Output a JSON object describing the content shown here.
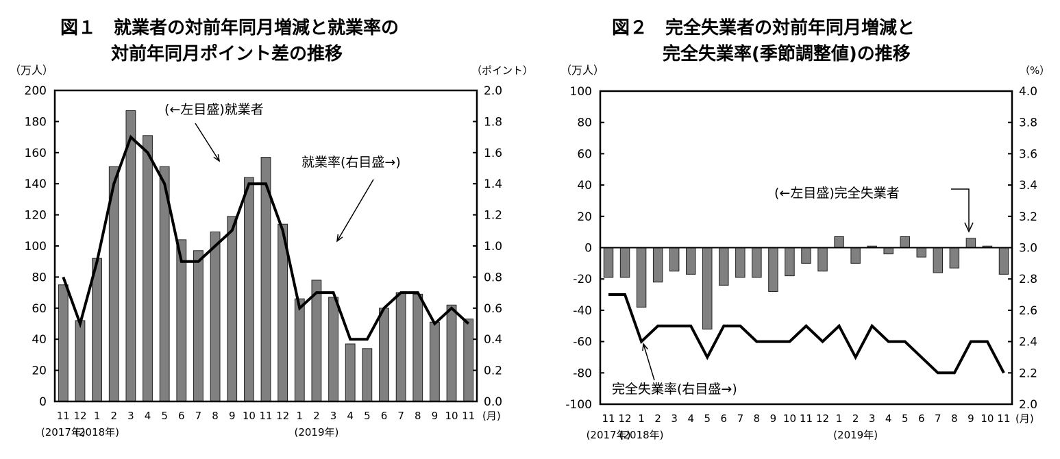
{
  "chart_data": [
    {
      "type": "bar+line",
      "title_line1": "図１　就業者の対前年同月増減と就業率の",
      "title_line2": "対前年同月ポイント差の推移",
      "ylabel_left": "（万人）",
      "ylabel_right": "（ポイント）",
      "x_unit": "(月)",
      "categories": [
        "11",
        "12",
        "1",
        "2",
        "3",
        "4",
        "5",
        "6",
        "7",
        "8",
        "9",
        "10",
        "11",
        "12",
        "1",
        "2",
        "3",
        "4",
        "5",
        "6",
        "7",
        "8",
        "9",
        "10",
        "11"
      ],
      "year_labels": [
        {
          "index": 0,
          "text": "(2017年)"
        },
        {
          "index": 2,
          "text": "(2018年)"
        },
        {
          "index": 15,
          "text": "(2019年)"
        }
      ],
      "ylim_left": [
        0,
        200
      ],
      "yticks_left": [
        0,
        20,
        40,
        60,
        80,
        100,
        120,
        140,
        160,
        180,
        200
      ],
      "ylim_right": [
        0,
        2.0
      ],
      "yticks_right": [
        "0.0",
        "0.2",
        "0.4",
        "0.6",
        "0.8",
        "1.0",
        "1.2",
        "1.4",
        "1.6",
        "1.8",
        "2.0"
      ],
      "series": [
        {
          "name": "就業者",
          "axis": "left",
          "type": "bar",
          "color": "#808080",
          "values": [
            75,
            52,
            92,
            151,
            187,
            171,
            151,
            104,
            97,
            109,
            119,
            144,
            157,
            114,
            66,
            78,
            67,
            37,
            34,
            60,
            70,
            69,
            51,
            62,
            53
          ]
        },
        {
          "name": "就業率",
          "axis": "right",
          "type": "line",
          "color": "#000000",
          "values": [
            0.8,
            0.5,
            0.9,
            1.4,
            1.7,
            1.6,
            1.4,
            0.9,
            0.9,
            1.0,
            1.1,
            1.4,
            1.4,
            1.1,
            0.6,
            0.7,
            0.7,
            0.4,
            0.4,
            0.6,
            0.7,
            0.7,
            0.5,
            0.6,
            0.5
          ]
        }
      ],
      "annotations": [
        "(←左目盛)就業者",
        "就業率(右目盛→)"
      ]
    },
    {
      "type": "bar+line",
      "title_line1": "図２　完全失業者の対前年同月増減と",
      "title_line2": "完全失業率(季節調整値)の推移",
      "ylabel_left": "（万人）",
      "ylabel_right": "（%）",
      "x_unit": "(月)",
      "categories": [
        "11",
        "12",
        "1",
        "2",
        "3",
        "4",
        "5",
        "6",
        "7",
        "8",
        "9",
        "10",
        "11",
        "12",
        "1",
        "2",
        "3",
        "4",
        "5",
        "6",
        "7",
        "8",
        "9",
        "10",
        "11"
      ],
      "year_labels": [
        {
          "index": 0,
          "text": "(2017年)"
        },
        {
          "index": 2,
          "text": "(2018年)"
        },
        {
          "index": 15,
          "text": "(2019年)"
        }
      ],
      "ylim_left": [
        -100,
        100
      ],
      "yticks_left": [
        -100,
        -80,
        -60,
        -40,
        -20,
        0,
        20,
        40,
        60,
        80,
        100
      ],
      "ylim_right": [
        2.0,
        4.0
      ],
      "yticks_right": [
        "2.0",
        "2.2",
        "2.4",
        "2.6",
        "2.8",
        "3.0",
        "3.2",
        "3.4",
        "3.6",
        "3.8",
        "4.0"
      ],
      "series": [
        {
          "name": "完全失業者",
          "axis": "left",
          "type": "bar",
          "color": "#808080",
          "values": [
            -19,
            -19,
            -38,
            -22,
            -15,
            -17,
            -52,
            -24,
            -19,
            -19,
            -28,
            -18,
            -10,
            -15,
            7,
            -10,
            1,
            -4,
            7,
            -6,
            -16,
            -13,
            6,
            1,
            -17
          ]
        },
        {
          "name": "完全失業率",
          "axis": "right",
          "type": "line",
          "color": "#000000",
          "values": [
            2.7,
            2.7,
            2.4,
            2.5,
            2.5,
            2.5,
            2.3,
            2.5,
            2.5,
            2.4,
            2.4,
            2.4,
            2.5,
            2.4,
            2.5,
            2.3,
            2.5,
            2.4,
            2.4,
            2.3,
            2.2,
            2.2,
            2.4,
            2.4,
            2.2
          ]
        }
      ],
      "annotations": [
        "(←左目盛)完全失業者",
        "完全失業率(右目盛→)"
      ]
    }
  ]
}
